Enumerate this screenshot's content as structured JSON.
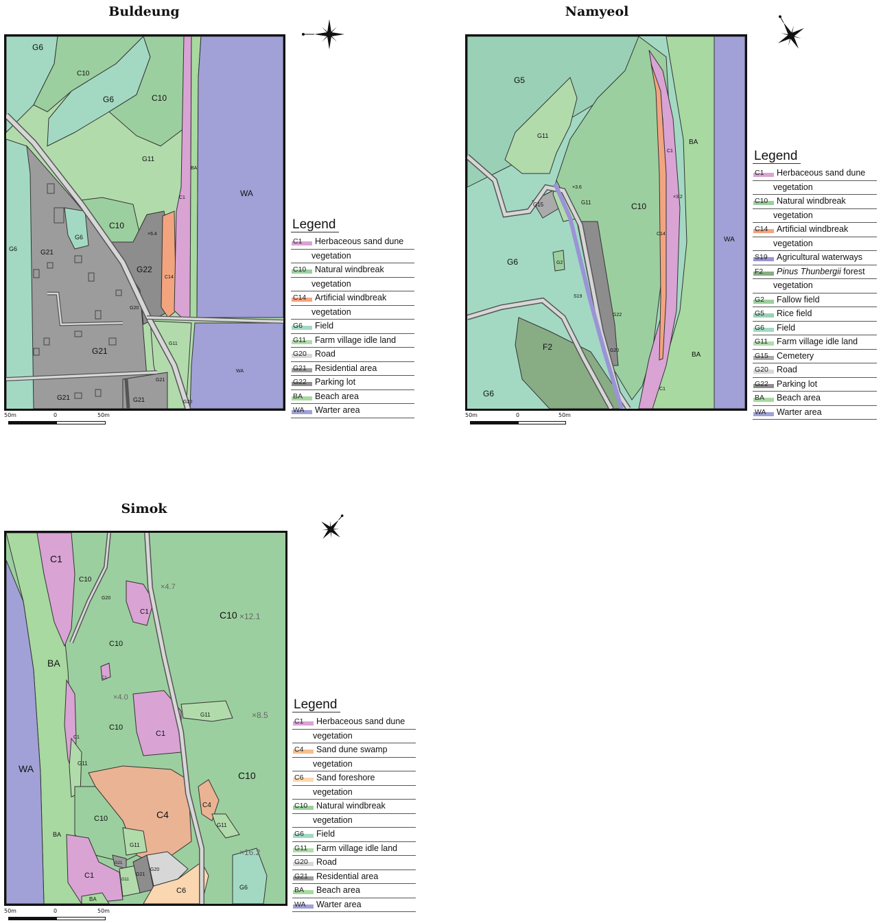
{
  "colors": {
    "C1": "#d9a3d4",
    "C4": "#f3bf8e",
    "C6": "#fad7b0",
    "C10": "#9ccf9f",
    "C14": "#f2a47f",
    "S19": "#9a94d6",
    "F2": "#88ac84",
    "G2": "#9ccf9f",
    "G5": "#9ad0b6",
    "G6": "#a3d9c3",
    "G11": "#b2dbac",
    "G15": "#aaaaaa",
    "G20": "#d7d7d7",
    "G21": "#9c9c9c",
    "G22": "#8d8d8d",
    "BA": "#a8d9a0",
    "WA": "#a1a1d7"
  },
  "panels": {
    "buldeung": {
      "title": "Buldeung",
      "labels": {
        "g6a": "G6",
        "c10a": "C10",
        "g6b": "G6",
        "c10b": "C10",
        "g11": "G11",
        "ba": "BA",
        "c1": "C1",
        "wa": "WA",
        "wa2": "WA",
        "c10c": "C10",
        "g6c": "G6",
        "g6d": "G6",
        "g21a": "G21",
        "g22": "G22",
        "c14": "C14",
        "g20": "G20",
        "g11b": "G11",
        "g21b": "G21",
        "g21c": "G21",
        "g21d": "G21",
        "g21e": "G21",
        "g20b": "G20",
        "spot": "×6.4"
      },
      "legend": {
        "title": "Legend",
        "rows": [
          {
            "code": "C1",
            "text": "Herbaceous sand dune"
          },
          {
            "code": "",
            "text": "vegetation"
          },
          {
            "code": "C10",
            "text": "Natural windbreak"
          },
          {
            "code": "",
            "text": "vegetation"
          },
          {
            "code": "C14",
            "text": "Artificial windbreak"
          },
          {
            "code": "",
            "text": "vegetation"
          },
          {
            "code": "G6",
            "text": "Field"
          },
          {
            "code": "G11",
            "text": "Farm village idle land"
          },
          {
            "code": "G20",
            "text": "Road"
          },
          {
            "code": "G21",
            "text": "Residential area"
          },
          {
            "code": "G22",
            "text": "Parking lot"
          },
          {
            "code": "BA",
            "text": "Beach area"
          },
          {
            "code": "WA",
            "text": "Warter area"
          }
        ]
      },
      "scale": {
        "left": "50m",
        "mid": "0",
        "right": "50m"
      }
    },
    "namyeol": {
      "title": "Namyeol",
      "labels": {
        "g5": "G5",
        "g11a": "G11",
        "g15": "G15",
        "g11b": "G11",
        "c10": "C10",
        "c1a": "C1",
        "ba1": "BA",
        "wa": "WA",
        "g6a": "G6",
        "g2": "G2",
        "s19": "S19",
        "g22": "G22",
        "g20": "G20",
        "c14": "C14",
        "f2": "F2",
        "g6b": "G6",
        "ba2": "BA",
        "c1b": "C1",
        "spot1": "×3.6",
        "spot2": "×3.2"
      },
      "legend": {
        "title": "Legend",
        "rows": [
          {
            "code": "C1",
            "text": "Herbaceous sand dune"
          },
          {
            "code": "",
            "text": "vegetation"
          },
          {
            "code": "C10",
            "text": "Natural windbreak"
          },
          {
            "code": "",
            "text": "vegetation"
          },
          {
            "code": "C14",
            "text": "Artificial windbreak"
          },
          {
            "code": "",
            "text": "vegetation"
          },
          {
            "code": "S19",
            "text": "Agricultural waterways"
          },
          {
            "code": "F2",
            "text": "Pinus Thunbergii",
            "text2": " forest"
          },
          {
            "code": "",
            "text": "vegetation"
          },
          {
            "code": "G2",
            "text": "Fallow field"
          },
          {
            "code": "G5",
            "text": "Rice field"
          },
          {
            "code": "G6",
            "text": "Field"
          },
          {
            "code": "G11",
            "text": "Farm village idle land"
          },
          {
            "code": "G15",
            "text": "Cemetery"
          },
          {
            "code": "G20",
            "text": "Road"
          },
          {
            "code": "G22",
            "text": "Parking lot"
          },
          {
            "code": "BA",
            "text": "Beach area"
          },
          {
            "code": "WA",
            "text": "Warter area"
          }
        ]
      },
      "scale": {
        "left": "50m",
        "mid": "0",
        "right": "50m"
      }
    },
    "simok": {
      "title": "Simok",
      "labels": {
        "c1a": "C1",
        "c10a": "C10",
        "g20a": "G20",
        "c1b": "C1",
        "c10b": "C10",
        "c10c": "C10",
        "ba1": "BA",
        "c1c": "C1",
        "c10d": "C10",
        "c1d": "C1",
        "c1e": "C1",
        "g11a": "G11",
        "wa": "WA",
        "g11b": "G11",
        "c10e": "C10",
        "c4a": "C4",
        "c4b": "C4",
        "g11c": "G11",
        "c10f": "C10",
        "g11d": "G11",
        "ba2": "BA",
        "c1f": "C1",
        "g21a": "G21",
        "g11e": "G11",
        "g21b": "G21",
        "g20b": "G20",
        "c6": "C6",
        "g6": "G6",
        "ba3": "BA",
        "c10g": "C10",
        "spot1": "×4.7",
        "spot2": "×12.1",
        "spot3": "×4.0",
        "spot4": "×8.5",
        "spot5": "×16.2"
      },
      "legend": {
        "title": "Legend",
        "rows": [
          {
            "code": "C1",
            "text": "Herbaceous sand dune"
          },
          {
            "code": "",
            "text": "vegetation"
          },
          {
            "code": "C4",
            "text": "Sand dune swamp"
          },
          {
            "code": "",
            "text": "vegetation"
          },
          {
            "code": "C6",
            "text": "Sand foreshore"
          },
          {
            "code": "",
            "text": "vegetation"
          },
          {
            "code": "C10",
            "text": "Natural windbreak"
          },
          {
            "code": "",
            "text": "vegetation"
          },
          {
            "code": "G6",
            "text": "Field"
          },
          {
            "code": "G11",
            "text": "Farm village idle land"
          },
          {
            "code": "G20",
            "text": "Road"
          },
          {
            "code": "G21",
            "text": "Residential area"
          },
          {
            "code": "BA",
            "text": "Beach area"
          },
          {
            "code": "WA",
            "text": "Warter area"
          }
        ]
      },
      "scale": {
        "left": "50m",
        "mid": "0",
        "right": "50m"
      }
    }
  }
}
